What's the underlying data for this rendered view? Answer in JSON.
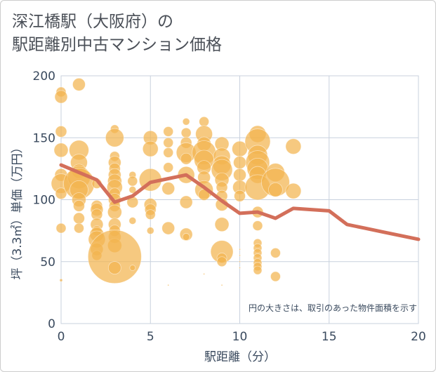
{
  "title_line1": "深江橋駅（大阪府）の",
  "title_line2": "駅距離別中古マンション価格",
  "note": "円の大きさは、取引のあった物件面積を示す",
  "colors": {
    "bubble": "#f2b44f",
    "line": "#d36f5a",
    "grid": "#c8d1de",
    "axis_text": "#3a4a5e",
    "title_text": "#4a4f57"
  },
  "chart_data": {
    "type": "scatter",
    "title": "深江橋駅（大阪府）の 駅距離別中古マンション価格",
    "xlabel": "駅距離（分）",
    "ylabel": "坪（3.3㎡）単価（万円）",
    "xlim": [
      0,
      20
    ],
    "ylim": [
      0,
      200
    ],
    "xticks": [
      0,
      5,
      10,
      15,
      20
    ],
    "yticks": [
      0,
      50,
      100,
      150,
      200
    ],
    "grid": true,
    "annotation": "円の大きさは、取引のあった物件面積を示す",
    "bubbles": [
      {
        "x": 0,
        "y": 187,
        "s": 7
      },
      {
        "x": 0,
        "y": 183,
        "s": 9
      },
      {
        "x": 0,
        "y": 155,
        "s": 8
      },
      {
        "x": 0,
        "y": 140,
        "s": 10
      },
      {
        "x": 0,
        "y": 120,
        "s": 9
      },
      {
        "x": 0,
        "y": 113,
        "s": 14
      },
      {
        "x": 0,
        "y": 105,
        "s": 8
      },
      {
        "x": 0,
        "y": 77,
        "s": 7
      },
      {
        "x": 0,
        "y": 35,
        "s": 2
      },
      {
        "x": 1,
        "y": 193,
        "s": 9
      },
      {
        "x": 1,
        "y": 140,
        "s": 14
      },
      {
        "x": 1,
        "y": 130,
        "s": 12
      },
      {
        "x": 1,
        "y": 123,
        "s": 10
      },
      {
        "x": 1,
        "y": 118,
        "s": 16
      },
      {
        "x": 1,
        "y": 113,
        "s": 22
      },
      {
        "x": 1,
        "y": 108,
        "s": 13
      },
      {
        "x": 1,
        "y": 100,
        "s": 10
      },
      {
        "x": 1,
        "y": 95,
        "s": 8
      },
      {
        "x": 1,
        "y": 85,
        "s": 8
      },
      {
        "x": 1,
        "y": 77,
        "s": 7
      },
      {
        "x": 2,
        "y": 113,
        "s": 7
      },
      {
        "x": 2,
        "y": 95,
        "s": 8
      },
      {
        "x": 2,
        "y": 92,
        "s": 9
      },
      {
        "x": 2,
        "y": 88,
        "s": 8
      },
      {
        "x": 2,
        "y": 80,
        "s": 9
      },
      {
        "x": 2,
        "y": 75,
        "s": 7
      },
      {
        "x": 2,
        "y": 72,
        "s": 10
      },
      {
        "x": 2,
        "y": 68,
        "s": 12
      },
      {
        "x": 2,
        "y": 60,
        "s": 9
      },
      {
        "x": 2,
        "y": 55,
        "s": 7
      },
      {
        "x": 3,
        "y": 157,
        "s": 6
      },
      {
        "x": 3,
        "y": 150,
        "s": 13
      },
      {
        "x": 3,
        "y": 135,
        "s": 7
      },
      {
        "x": 3,
        "y": 130,
        "s": 9
      },
      {
        "x": 3,
        "y": 125,
        "s": 8
      },
      {
        "x": 3,
        "y": 120,
        "s": 9
      },
      {
        "x": 3,
        "y": 115,
        "s": 10
      },
      {
        "x": 3,
        "y": 110,
        "s": 11
      },
      {
        "x": 3,
        "y": 105,
        "s": 8
      },
      {
        "x": 3,
        "y": 100,
        "s": 9
      },
      {
        "x": 3,
        "y": 95,
        "s": 8
      },
      {
        "x": 3,
        "y": 90,
        "s": 10
      },
      {
        "x": 3,
        "y": 80,
        "s": 9
      },
      {
        "x": 3,
        "y": 75,
        "s": 8
      },
      {
        "x": 3,
        "y": 70,
        "s": 9
      },
      {
        "x": 3,
        "y": 63,
        "s": 10
      },
      {
        "x": 3,
        "y": 54,
        "s": 38
      },
      {
        "x": 3,
        "y": 45,
        "s": 9
      },
      {
        "x": 4,
        "y": 120,
        "s": 5
      },
      {
        "x": 4,
        "y": 115,
        "s": 7
      },
      {
        "x": 4,
        "y": 108,
        "s": 5
      },
      {
        "x": 4,
        "y": 98,
        "s": 8
      },
      {
        "x": 4,
        "y": 83,
        "s": 5
      },
      {
        "x": 4,
        "y": 45,
        "s": 4
      },
      {
        "x": 5,
        "y": 150,
        "s": 10
      },
      {
        "x": 5,
        "y": 141,
        "s": 11
      },
      {
        "x": 5,
        "y": 116,
        "s": 16
      },
      {
        "x": 5,
        "y": 96,
        "s": 9
      },
      {
        "x": 5,
        "y": 92,
        "s": 8
      },
      {
        "x": 5,
        "y": 88,
        "s": 7
      },
      {
        "x": 5,
        "y": 75,
        "s": 5
      },
      {
        "x": 6,
        "y": 155,
        "s": 7
      },
      {
        "x": 6,
        "y": 146,
        "s": 7
      },
      {
        "x": 6,
        "y": 138,
        "s": 7
      },
      {
        "x": 6,
        "y": 126,
        "s": 7
      },
      {
        "x": 6,
        "y": 109,
        "s": 9
      },
      {
        "x": 6,
        "y": 77,
        "s": 9
      },
      {
        "x": 6,
        "y": 31,
        "s": 1
      },
      {
        "x": 7,
        "y": 163,
        "s": 5
      },
      {
        "x": 7,
        "y": 154,
        "s": 7
      },
      {
        "x": 7,
        "y": 146,
        "s": 8
      },
      {
        "x": 7,
        "y": 138,
        "s": 14
      },
      {
        "x": 7,
        "y": 133,
        "s": 8
      },
      {
        "x": 7,
        "y": 120,
        "s": 12
      },
      {
        "x": 7,
        "y": 98,
        "s": 9
      },
      {
        "x": 7,
        "y": 72,
        "s": 9
      },
      {
        "x": 7,
        "y": 70,
        "s": 5
      },
      {
        "x": 8,
        "y": 163,
        "s": 7
      },
      {
        "x": 8,
        "y": 153,
        "s": 12
      },
      {
        "x": 8,
        "y": 145,
        "s": 10
      },
      {
        "x": 8,
        "y": 138,
        "s": 17
      },
      {
        "x": 8,
        "y": 132,
        "s": 14
      },
      {
        "x": 8,
        "y": 126,
        "s": 10
      },
      {
        "x": 8,
        "y": 118,
        "s": 9
      },
      {
        "x": 8,
        "y": 108,
        "s": 13
      },
      {
        "x": 8,
        "y": 104,
        "s": 8
      },
      {
        "x": 8,
        "y": 40,
        "s": 1
      },
      {
        "x": 9,
        "y": 145,
        "s": 10
      },
      {
        "x": 9,
        "y": 135,
        "s": 12
      },
      {
        "x": 9,
        "y": 128,
        "s": 13
      },
      {
        "x": 9,
        "y": 124,
        "s": 15
      },
      {
        "x": 9,
        "y": 116,
        "s": 10
      },
      {
        "x": 9,
        "y": 110,
        "s": 8
      },
      {
        "x": 9,
        "y": 103,
        "s": 8
      },
      {
        "x": 9,
        "y": 96,
        "s": 9
      },
      {
        "x": 9,
        "y": 80,
        "s": 10
      },
      {
        "x": 9,
        "y": 58,
        "s": 16
      },
      {
        "x": 9,
        "y": 53,
        "s": 7
      },
      {
        "x": 9,
        "y": 50,
        "s": 7
      },
      {
        "x": 9,
        "y": 31,
        "s": 1
      },
      {
        "x": 10,
        "y": 141,
        "s": 11
      },
      {
        "x": 10,
        "y": 130,
        "s": 9
      },
      {
        "x": 10,
        "y": 120,
        "s": 9
      },
      {
        "x": 10,
        "y": 110,
        "s": 10
      },
      {
        "x": 10,
        "y": 103,
        "s": 8
      },
      {
        "x": 10,
        "y": 60,
        "s": 1
      },
      {
        "x": 10,
        "y": 55,
        "s": 1
      },
      {
        "x": 10,
        "y": 50,
        "s": 1
      },
      {
        "x": 10,
        "y": 45,
        "s": 1
      },
      {
        "x": 11,
        "y": 153,
        "s": 12
      },
      {
        "x": 11,
        "y": 147,
        "s": 18
      },
      {
        "x": 11,
        "y": 136,
        "s": 14
      },
      {
        "x": 11,
        "y": 130,
        "s": 17
      },
      {
        "x": 11,
        "y": 125,
        "s": 15
      },
      {
        "x": 11,
        "y": 120,
        "s": 12
      },
      {
        "x": 11,
        "y": 110,
        "s": 18
      },
      {
        "x": 11,
        "y": 90,
        "s": 8
      },
      {
        "x": 11,
        "y": 79,
        "s": 7
      },
      {
        "x": 11,
        "y": 65,
        "s": 6
      },
      {
        "x": 11,
        "y": 61,
        "s": 6
      },
      {
        "x": 11,
        "y": 57,
        "s": 6
      },
      {
        "x": 11,
        "y": 53,
        "s": 6
      },
      {
        "x": 11,
        "y": 49,
        "s": 6
      },
      {
        "x": 11,
        "y": 46,
        "s": 6
      },
      {
        "x": 11,
        "y": 43,
        "s": 6
      },
      {
        "x": 12,
        "y": 122,
        "s": 13
      },
      {
        "x": 12,
        "y": 114,
        "s": 20
      },
      {
        "x": 12,
        "y": 108,
        "s": 10
      },
      {
        "x": 12,
        "y": 57,
        "s": 7
      },
      {
        "x": 12,
        "y": 38,
        "s": 7
      },
      {
        "x": 13,
        "y": 143,
        "s": 11
      },
      {
        "x": 13,
        "y": 107,
        "s": 11
      }
    ],
    "line": {
      "x": [
        0,
        1,
        2,
        3,
        4,
        5,
        6,
        7,
        8,
        9,
        10,
        11,
        12,
        13,
        14,
        15,
        16,
        17,
        18,
        19,
        20
      ],
      "y": [
        128,
        122,
        116,
        98,
        103,
        114,
        117,
        120,
        110,
        99,
        89,
        90,
        85,
        93,
        92,
        91,
        80,
        77,
        74,
        71,
        68
      ]
    }
  }
}
